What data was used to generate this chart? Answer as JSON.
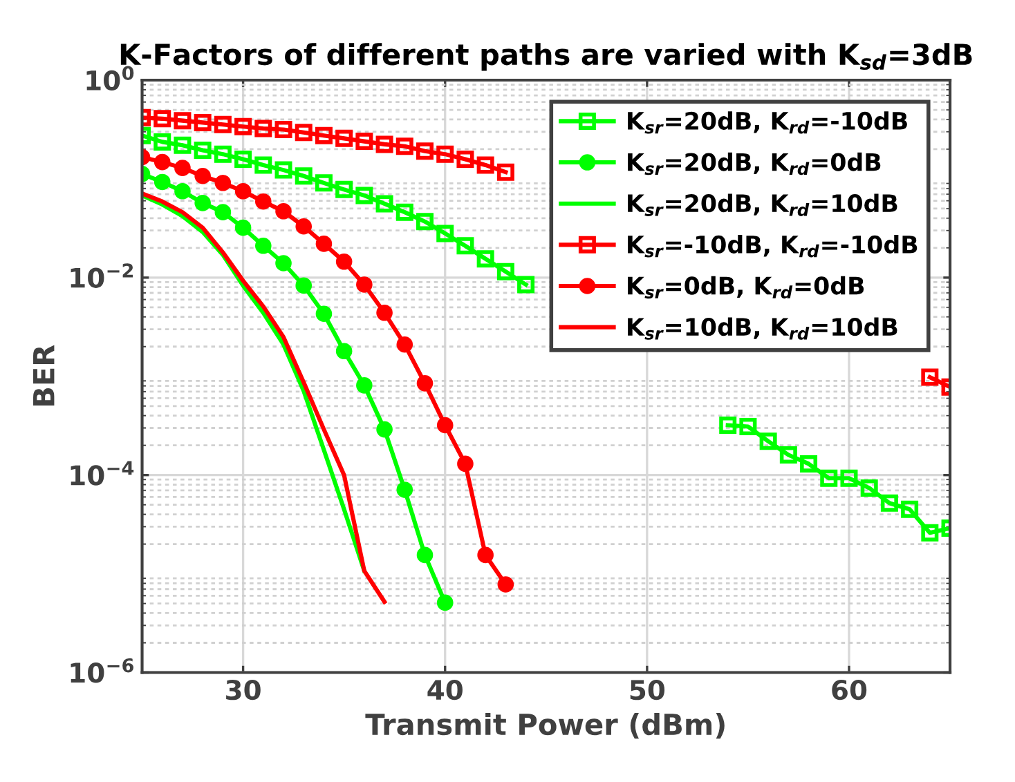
{
  "chart_data": {
    "type": "line",
    "title": "K-Factors of different paths are varied with K$_{sd}$=3dB",
    "xlabel": "Transmit Power (dBm)",
    "ylabel": "BER",
    "log": "y",
    "grid": true,
    "legend": "top right",
    "line_style": "solid",
    "xlim": [
      25,
      65
    ],
    "xticks": [
      30,
      40,
      50,
      60
    ],
    "ylim": [
      1e-06,
      1
    ],
    "yticks": [
      {
        "value": 1e-06,
        "label": "10$^{−6}$"
      },
      {
        "value": 0.0001,
        "label": "10$^{−4}$"
      },
      {
        "value": 0.01,
        "label": "10$^{−2}$"
      },
      {
        "value": 1,
        "label": "10$^{0}$"
      }
    ],
    "series": [
      {
        "name": "K$_{sr}$=20dB, K$_{rd}$=-10dB",
        "color": "#00ff00",
        "marker": "square",
        "x": [
          25,
          26,
          27,
          28,
          29,
          30,
          31,
          32,
          33,
          34,
          35,
          36,
          37,
          38,
          39,
          40,
          41,
          42,
          43,
          44,
          45,
          46,
          47,
          48,
          49,
          50,
          51,
          52,
          53,
          54,
          55,
          56,
          57,
          58,
          59,
          60,
          61,
          62,
          63,
          64,
          65
        ],
        "values": [
          0.275,
          0.237,
          0.219,
          0.195,
          0.178,
          0.158,
          0.138,
          0.123,
          0.107,
          0.091,
          0.078,
          0.068,
          0.056,
          0.046,
          0.037,
          0.028,
          0.021,
          0.0155,
          0.0115,
          0.0085,
          null,
          null,
          null,
          null,
          null,
          null,
          null,
          null,
          null,
          0.00032,
          0.00031,
          0.00022,
          0.00016,
          0.00013,
          9.3e-05,
          9.3e-05,
          7.4e-05,
          5.2e-05,
          4.5e-05,
          2.6e-05,
          2.9e-05
        ]
      },
      {
        "name": "K$_{sr}$=20dB, K$_{rd}$=0dB",
        "color": "#00ff00",
        "marker": "circle",
        "x": [
          25,
          26,
          27,
          28,
          29,
          30,
          31,
          32,
          33,
          34,
          35,
          36,
          37,
          38,
          39,
          40
        ],
        "values": [
          0.112,
          0.093,
          0.075,
          0.057,
          0.046,
          0.032,
          0.021,
          0.014,
          0.0083,
          0.0043,
          0.0018,
          0.00081,
          0.00029,
          7.1e-05,
          1.55e-05,
          5.1e-06
        ]
      },
      {
        "name": "K$_{sr}$=20dB, K$_{rd}$=10dB",
        "color": "#00ff00",
        "marker": "none",
        "x": [
          25,
          26,
          27,
          28,
          29,
          30,
          31,
          32,
          33,
          34,
          35,
          36
        ],
        "values": [
          0.068,
          0.055,
          0.042,
          0.029,
          0.017,
          0.0083,
          0.0044,
          0.0021,
          0.00071,
          0.00018,
          4.5e-05,
          1.07e-05
        ]
      },
      {
        "name": "K$_{sr}$=-10dB, K$_{rd}$=-10dB",
        "color": "#ff0000",
        "marker": "square",
        "x": [
          25,
          26,
          27,
          28,
          29,
          30,
          31,
          32,
          33,
          34,
          35,
          36,
          37,
          38,
          39,
          40,
          41,
          42,
          43,
          44,
          45,
          46,
          47,
          48,
          49,
          50,
          51,
          52,
          53,
          54,
          55,
          56,
          57,
          58,
          59,
          60,
          61,
          62,
          63,
          64,
          65
        ],
        "values": [
          0.417,
          0.407,
          0.389,
          0.372,
          0.355,
          0.339,
          0.324,
          0.316,
          0.295,
          0.275,
          0.257,
          0.24,
          0.224,
          0.214,
          0.191,
          0.178,
          0.158,
          0.138,
          0.117,
          null,
          null,
          null,
          null,
          null,
          null,
          null,
          null,
          null,
          null,
          null,
          null,
          null,
          null,
          null,
          null,
          null,
          null,
          null,
          null,
          0.00098,
          0.00078
        ]
      },
      {
        "name": "K$_{sr}$=0dB, K$_{rd}$=0dB",
        "color": "#ff0000",
        "marker": "circle",
        "x": [
          25,
          26,
          27,
          28,
          29,
          30,
          31,
          32,
          33,
          34,
          35,
          36,
          37,
          38,
          39,
          40,
          41,
          42,
          43
        ],
        "values": [
          0.166,
          0.148,
          0.129,
          0.107,
          0.091,
          0.075,
          0.059,
          0.047,
          0.033,
          0.022,
          0.0145,
          0.0085,
          0.0044,
          0.0021,
          0.00085,
          0.00032,
          0.00013,
          1.55e-05,
          7.8e-06
        ]
      },
      {
        "name": "K$_{sr}$=10dB, K$_{rd}$=10dB",
        "color": "#ff0000",
        "marker": "none",
        "x": [
          25,
          26,
          27,
          28,
          29,
          30,
          31,
          32,
          33,
          34,
          35,
          36,
          37
        ],
        "values": [
          0.071,
          0.059,
          0.046,
          0.032,
          0.018,
          0.0093,
          0.0051,
          0.0025,
          0.00087,
          0.00029,
          0.0001,
          1.07e-05,
          5.2e-06
        ]
      }
    ]
  }
}
